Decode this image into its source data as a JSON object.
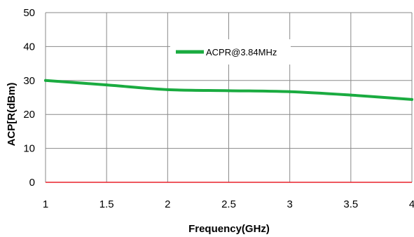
{
  "chart_data": {
    "type": "line",
    "title": "",
    "xlabel": "Frequency(GHz)",
    "ylabel": "ACP[R(dBm)",
    "xlim": [
      1,
      4
    ],
    "ylim": [
      0,
      50
    ],
    "x_ticks": [
      "1",
      "1.5",
      "2",
      "2.5",
      "3",
      "3.5",
      "4"
    ],
    "y_ticks": [
      "0",
      "10",
      "20",
      "30",
      "40",
      "50"
    ],
    "grid": true,
    "legend_position": "top-center",
    "series": [
      {
        "name": "ACPR@3.84MHz",
        "color": "#1aab40",
        "x": [
          1,
          1.5,
          2,
          2.5,
          3,
          3.5,
          4
        ],
        "values": [
          30,
          28.7,
          27.3,
          27,
          26.7,
          25.7,
          24.4
        ]
      }
    ],
    "baseline_color": "#e8202a"
  }
}
